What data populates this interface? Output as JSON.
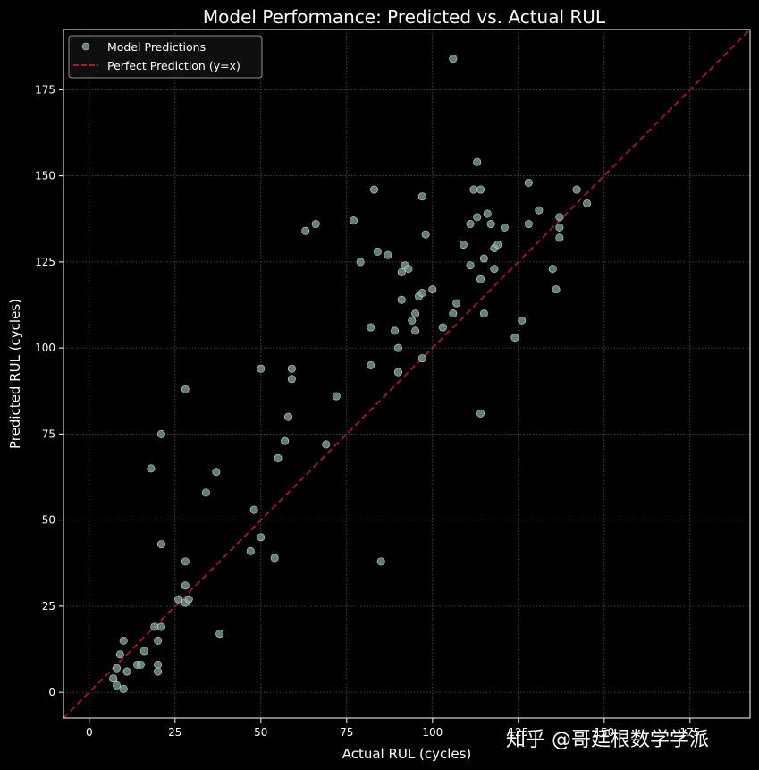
{
  "chart_data": {
    "type": "scatter",
    "title": "Model Performance: Predicted vs. Actual RUL",
    "xlabel": "Actual RUL (cycles)",
    "ylabel": "Predicted RUL (cycles)",
    "xlim": [
      -7.5,
      192.5
    ],
    "ylim": [
      -7.5,
      192.5
    ],
    "xticks": [
      0,
      25,
      50,
      75,
      100,
      125,
      150,
      175
    ],
    "yticks": [
      0,
      25,
      50,
      75,
      100,
      125,
      150,
      175
    ],
    "grid": true,
    "legend_position": "top-left",
    "series": [
      {
        "name": "Model Predictions",
        "kind": "scatter",
        "color": "#7fa096",
        "points": [
          [
            7,
            4
          ],
          [
            8,
            2
          ],
          [
            8,
            7
          ],
          [
            9,
            11
          ],
          [
            10,
            15
          ],
          [
            10,
            1
          ],
          [
            11,
            6
          ],
          [
            14,
            8
          ],
          [
            15,
            8
          ],
          [
            16,
            12
          ],
          [
            19,
            19
          ],
          [
            20,
            15
          ],
          [
            20,
            8
          ],
          [
            20,
            6
          ],
          [
            21,
            19
          ],
          [
            26,
            27
          ],
          [
            28,
            31
          ],
          [
            28,
            26
          ],
          [
            29,
            27
          ],
          [
            28,
            38
          ],
          [
            18,
            65
          ],
          [
            21,
            75
          ],
          [
            21,
            43
          ],
          [
            28,
            88
          ],
          [
            34,
            58
          ],
          [
            37,
            64
          ],
          [
            38,
            17
          ],
          [
            47,
            41
          ],
          [
            48,
            53
          ],
          [
            50,
            94
          ],
          [
            50,
            45
          ],
          [
            54,
            39
          ],
          [
            55,
            68
          ],
          [
            57,
            73
          ],
          [
            58,
            80
          ],
          [
            59,
            94
          ],
          [
            59,
            91
          ],
          [
            63,
            134
          ],
          [
            66,
            136
          ],
          [
            69,
            72
          ],
          [
            72,
            86
          ],
          [
            77,
            137
          ],
          [
            79,
            125
          ],
          [
            82,
            106
          ],
          [
            82,
            95
          ],
          [
            83,
            146
          ],
          [
            84,
            128
          ],
          [
            85,
            38
          ],
          [
            87,
            127
          ],
          [
            89,
            105
          ],
          [
            90,
            100
          ],
          [
            90,
            93
          ],
          [
            91,
            122
          ],
          [
            91,
            114
          ],
          [
            92,
            124
          ],
          [
            93,
            123
          ],
          [
            94,
            108
          ],
          [
            95,
            110
          ],
          [
            95,
            105
          ],
          [
            96,
            115
          ],
          [
            97,
            144
          ],
          [
            97,
            116
          ],
          [
            97,
            97
          ],
          [
            98,
            133
          ],
          [
            100,
            117
          ],
          [
            103,
            106
          ],
          [
            106,
            110
          ],
          [
            107,
            113
          ],
          [
            106,
            184
          ],
          [
            109,
            130
          ],
          [
            111,
            136
          ],
          [
            111,
            124
          ],
          [
            112,
            146
          ],
          [
            113,
            154
          ],
          [
            113,
            138
          ],
          [
            114,
            146
          ],
          [
            114,
            120
          ],
          [
            114,
            81
          ],
          [
            115,
            126
          ],
          [
            115,
            110
          ],
          [
            116,
            139
          ],
          [
            117,
            136
          ],
          [
            118,
            123
          ],
          [
            118,
            129
          ],
          [
            119,
            130
          ],
          [
            121,
            135
          ],
          [
            124,
            103
          ],
          [
            126,
            108
          ],
          [
            128,
            136
          ],
          [
            128,
            148
          ],
          [
            131,
            140
          ],
          [
            135,
            123
          ],
          [
            136,
            117
          ],
          [
            137,
            138
          ],
          [
            137,
            135
          ],
          [
            137,
            132
          ],
          [
            142,
            146
          ],
          [
            145,
            142
          ]
        ]
      },
      {
        "name": "Perfect Prediction (y=x)",
        "kind": "line",
        "color": "#a02030",
        "dashed": true,
        "points": [
          [
            -7.5,
            -7.5
          ],
          [
            192.5,
            192.5
          ]
        ]
      }
    ]
  },
  "watermark": {
    "text": "知乎 @哥廷根数学学派"
  }
}
